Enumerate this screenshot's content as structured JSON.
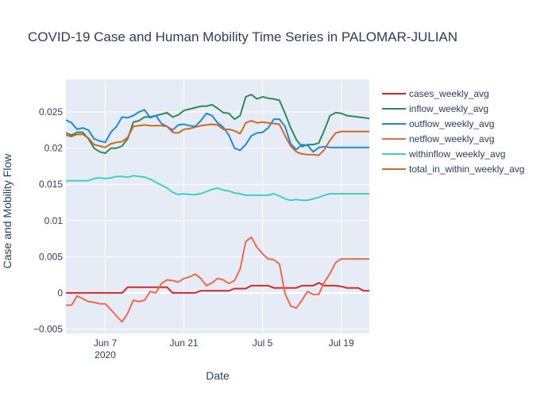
{
  "chart_data": {
    "type": "line",
    "title": "COVID-19 Case and Human Mobility Time Series in PALOMAR-JULIAN",
    "xlabel": "Date",
    "ylabel": "Case and Mobility Flow",
    "x_range": [
      0,
      54
    ],
    "ylim": [
      -0.0056,
      0.0295
    ],
    "x_ticks": [
      {
        "x": 7,
        "label": "Jun 7",
        "sublabel": "2020"
      },
      {
        "x": 21,
        "label": "Jun 21",
        "sublabel": ""
      },
      {
        "x": 35,
        "label": "Jul 5",
        "sublabel": ""
      },
      {
        "x": 49,
        "label": "Jul 19",
        "sublabel": ""
      }
    ],
    "y_ticks": [
      {
        "value": -0.005,
        "label": "−0.005"
      },
      {
        "value": 0,
        "label": "0"
      },
      {
        "value": 0.005,
        "label": "0.005"
      },
      {
        "value": 0.01,
        "label": "0.01"
      },
      {
        "value": 0.015,
        "label": "0.015"
      },
      {
        "value": 0.02,
        "label": "0.02"
      },
      {
        "value": 0.025,
        "label": "0.025"
      }
    ],
    "grid": true,
    "legend_position": "right",
    "x_start": 0,
    "x_step": 1,
    "series": [
      {
        "name": "cases_weekly_avg",
        "color": "#d62728",
        "values": [
          0,
          0,
          0,
          0,
          0,
          0,
          0,
          0,
          0,
          0,
          0,
          0.0008,
          0.0008,
          0.0008,
          0.0008,
          0.0008,
          0.0008,
          0.0008,
          0.0008,
          0,
          0,
          0,
          0,
          0,
          0.0003,
          0.0003,
          0.0003,
          0.0003,
          0.0003,
          0.0003,
          0.0006,
          0.0006,
          0.0006,
          0.001,
          0.001,
          0.001,
          0.001,
          0.0007,
          0.0007,
          0.0007,
          0.0007,
          0.0007,
          0.001,
          0.001,
          0.001,
          0.0014,
          0.001,
          0.001,
          0.001,
          0.0009,
          0.0007,
          0.0007,
          0.0007,
          0.0003,
          0.0003
        ]
      },
      {
        "name": "inflow_weekly_avg",
        "color": "#2e8b57",
        "values": [
          0.0221,
          0.0218,
          0.0222,
          0.0222,
          0.0213,
          0.02,
          0.0195,
          0.0193,
          0.02,
          0.02,
          0.0203,
          0.0213,
          0.0236,
          0.0238,
          0.0243,
          0.0243,
          0.0245,
          0.0247,
          0.0249,
          0.0243,
          0.0246,
          0.0252,
          0.0254,
          0.0256,
          0.0258,
          0.0258,
          0.026,
          0.0255,
          0.0249,
          0.0248,
          0.024,
          0.0245,
          0.0271,
          0.0274,
          0.0268,
          0.0271,
          0.0269,
          0.0268,
          0.0266,
          0.0248,
          0.0228,
          0.0212,
          0.0202,
          0.0205,
          0.0205,
          0.0207,
          0.0225,
          0.0245,
          0.0249,
          0.0248,
          0.0245,
          0.0244,
          0.0243,
          0.0242,
          0.0241
        ]
      },
      {
        "name": "outflow_weekly_avg",
        "color": "#1e88e5",
        "values": [
          0.0239,
          0.0235,
          0.0226,
          0.0228,
          0.0225,
          0.0213,
          0.021,
          0.0208,
          0.0222,
          0.023,
          0.0243,
          0.0242,
          0.0245,
          0.025,
          0.0253,
          0.0242,
          0.0245,
          0.0234,
          0.023,
          0.0225,
          0.0232,
          0.0233,
          0.0231,
          0.023,
          0.0238,
          0.0248,
          0.0245,
          0.0235,
          0.0229,
          0.0218,
          0.02,
          0.0197,
          0.0205,
          0.0217,
          0.0221,
          0.0222,
          0.0228,
          0.024,
          0.024,
          0.023,
          0.0206,
          0.0198,
          0.0205,
          0.0204,
          0.0195,
          0.0201,
          0.0202,
          0.0201,
          0.0201,
          0.0201,
          0.0201,
          0.0201,
          0.0201,
          0.0201,
          0.0201
        ]
      },
      {
        "name": "netflow_weekly_avg",
        "color": "#f4684a",
        "values": [
          -0.0017,
          -0.0017,
          -0.0004,
          -0.0008,
          -0.0012,
          -0.0013,
          -0.0015,
          -0.0015,
          -0.0023,
          -0.0032,
          -0.004,
          -0.0028,
          -0.001,
          -0.0012,
          -0.001,
          0.0002,
          0,
          0.0013,
          0.0018,
          0.0017,
          0.0015,
          0.002,
          0.0022,
          0.0026,
          0.002,
          0.001,
          0.0014,
          0.002,
          0.0018,
          0.0013,
          0.0017,
          0.0033,
          0.0071,
          0.0077,
          0.0063,
          0.0054,
          0.0047,
          0.0046,
          0.004,
          -0.0001,
          -0.0018,
          -0.0021,
          -0.001,
          0.0002,
          -0.0002,
          -0.0002,
          0.0015,
          0.0027,
          0.0042,
          0.0047,
          0.0047,
          0.0047,
          0.0047,
          0.0047,
          0.0047
        ]
      },
      {
        "name": "withinflow_weekly_avg",
        "color": "#40d0c8",
        "values": [
          0.0155,
          0.0155,
          0.0155,
          0.0155,
          0.0155,
          0.0158,
          0.0159,
          0.0158,
          0.0159,
          0.0161,
          0.0161,
          0.016,
          0.0162,
          0.0161,
          0.016,
          0.0157,
          0.0153,
          0.0149,
          0.0145,
          0.0139,
          0.0136,
          0.0137,
          0.0136,
          0.0136,
          0.0137,
          0.014,
          0.0143,
          0.0145,
          0.0142,
          0.0141,
          0.0138,
          0.0137,
          0.0135,
          0.0135,
          0.0135,
          0.0135,
          0.0135,
          0.0137,
          0.0134,
          0.013,
          0.0128,
          0.0129,
          0.0128,
          0.0128,
          0.013,
          0.0132,
          0.0135,
          0.0137,
          0.0137,
          0.0137,
          0.0137,
          0.0137,
          0.0137,
          0.0137,
          0.0137
        ]
      },
      {
        "name": "total_in_within_weekly_avg",
        "color": "#d2691e",
        "values": [
          0.0218,
          0.0216,
          0.0219,
          0.0219,
          0.0214,
          0.0205,
          0.0203,
          0.0201,
          0.0206,
          0.0208,
          0.0209,
          0.0215,
          0.023,
          0.0231,
          0.0232,
          0.0231,
          0.0231,
          0.0231,
          0.023,
          0.0222,
          0.0221,
          0.0226,
          0.0227,
          0.0229,
          0.0231,
          0.0232,
          0.0233,
          0.0232,
          0.0226,
          0.0226,
          0.0224,
          0.022,
          0.0235,
          0.0238,
          0.0235,
          0.0236,
          0.0235,
          0.0234,
          0.0233,
          0.0217,
          0.0203,
          0.0195,
          0.0192,
          0.0191,
          0.0191,
          0.019,
          0.0198,
          0.0211,
          0.0221,
          0.0223,
          0.0223,
          0.0223,
          0.0223,
          0.0223,
          0.0223
        ]
      }
    ]
  }
}
